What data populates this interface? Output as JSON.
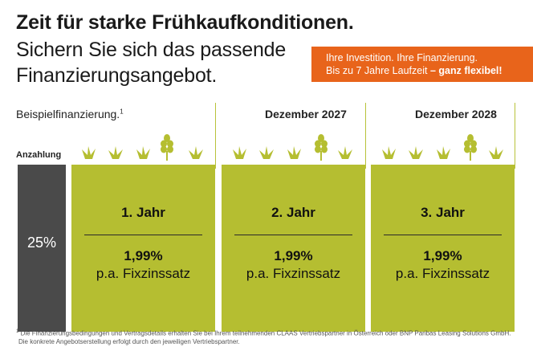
{
  "headline": "Zeit für starke Frühkaufkonditionen.",
  "subline_1": "Sichern Sie sich das passende",
  "subline_2": "Finanzierungsangebot.",
  "banner": {
    "line_1": "Ihre Investition. Ihre Finanzierung.",
    "line_2": "Bis zu 7 Jahre Laufzeit",
    "line_2_emphasis": "– ganz flexibel!",
    "color": "#e8641b"
  },
  "example_label": "Beispielfinanzierung.",
  "example_footnote_mark": "1",
  "down_payment": {
    "label": "Anzahlung",
    "value": "25%"
  },
  "columns": [
    {
      "header": "",
      "year": "1. Jahr",
      "rate": "1,99%",
      "rate_label": "p.a. Fixzinssatz"
    },
    {
      "header": "Dezember 2027",
      "year": "2. Jahr",
      "rate": "1,99%",
      "rate_label": "p.a. Fixzinssatz"
    },
    {
      "header": "Dezember 2028",
      "year": "3. Jahr",
      "rate": "1,99%",
      "rate_label": "p.a. Fixzinssatz"
    }
  ],
  "colors": {
    "green": "#b5be31",
    "dark": "#4a4a4a",
    "accent": "#e8641b"
  },
  "footnote": {
    "mark": "1",
    "line_1": "Die Finanzierungsbedingungen und Vertragsdetails erhalten Sie bei Ihrem teilnehmenden CLAAS Vertriebspartner in Österreich oder BNP Paribas Leasing Solutions GmbH.",
    "line_2": "Die konkrete Angebotserstellung erfolgt durch den jeweiligen Vertriebspartner."
  }
}
